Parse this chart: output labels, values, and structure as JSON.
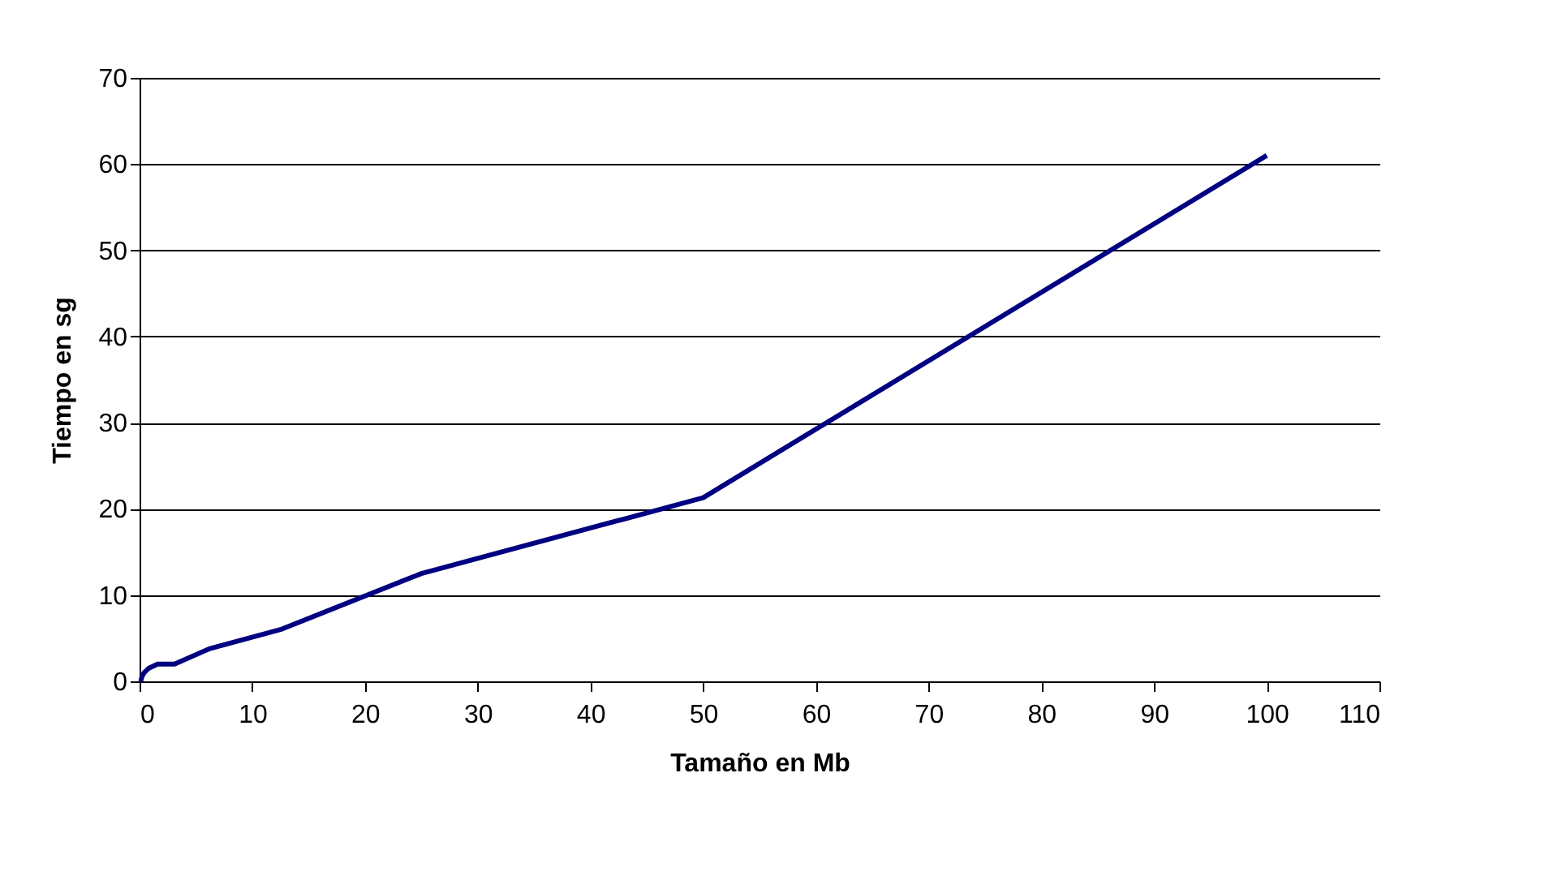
{
  "chart_data": {
    "type": "line",
    "xlabel": "Tamaño en Mb",
    "ylabel": "Tiempo en sg",
    "x": [
      0.1,
      0.2,
      0.4,
      0.8,
      1.6,
      3.1,
      6.25,
      12.5,
      25,
      50,
      100
    ],
    "series": [
      {
        "color": "#000080",
        "values": [
          0,
          0.5,
          1,
          1.5,
          2,
          2,
          3.8,
          6,
          12.5,
          21.3,
          61
        ]
      }
    ],
    "xlim": [
      0,
      110
    ],
    "xticks": [
      0,
      10,
      20,
      30,
      40,
      50,
      60,
      70,
      80,
      90,
      100,
      110
    ],
    "ylim": [
      0,
      70
    ],
    "yticks": [
      0,
      10,
      20,
      30,
      40,
      50,
      60,
      70
    ],
    "grid": "y",
    "marker": "none",
    "line_style": "solid"
  }
}
